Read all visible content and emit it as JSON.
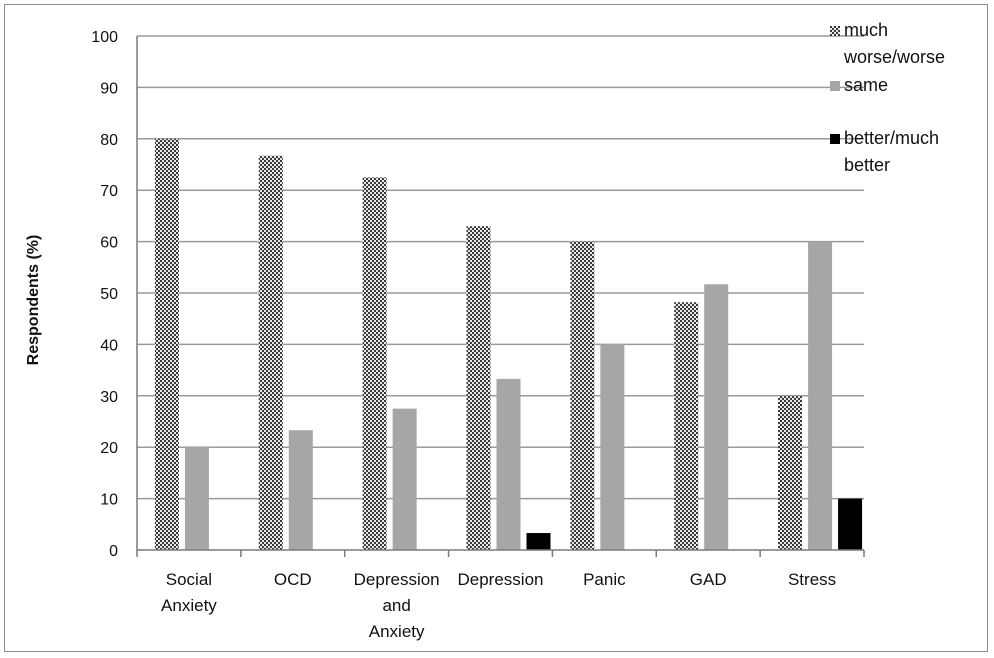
{
  "chart_data": {
    "type": "bar",
    "title": "",
    "xlabel": "",
    "ylabel": "Respondents (%)",
    "ylim": [
      0,
      100
    ],
    "yticks": [
      0,
      10,
      20,
      30,
      40,
      50,
      60,
      70,
      80,
      90,
      100
    ],
    "grid": true,
    "legend_position": "top-right",
    "categories": [
      [
        "Social",
        "Anxiety"
      ],
      [
        "OCD"
      ],
      [
        "Depression",
        "and",
        "Anxiety"
      ],
      [
        "Depression"
      ],
      [
        "Panic"
      ],
      [
        "GAD"
      ],
      [
        "Stress"
      ]
    ],
    "series": [
      {
        "name": [
          "much",
          "worse/worse"
        ],
        "pattern": "checker",
        "color": "#444444",
        "values": [
          80,
          76.7,
          72.5,
          63,
          60,
          48.2,
          30
        ]
      },
      {
        "name": [
          "same"
        ],
        "pattern": "solid",
        "color": "#a6a6a6",
        "values": [
          20,
          23.3,
          27.5,
          33.3,
          40,
          51.7,
          60
        ]
      },
      {
        "name": [
          "better/much",
          "better"
        ],
        "pattern": "solid",
        "color": "#000000",
        "values": [
          0,
          0,
          0,
          3.3,
          0,
          0,
          10
        ]
      }
    ]
  }
}
